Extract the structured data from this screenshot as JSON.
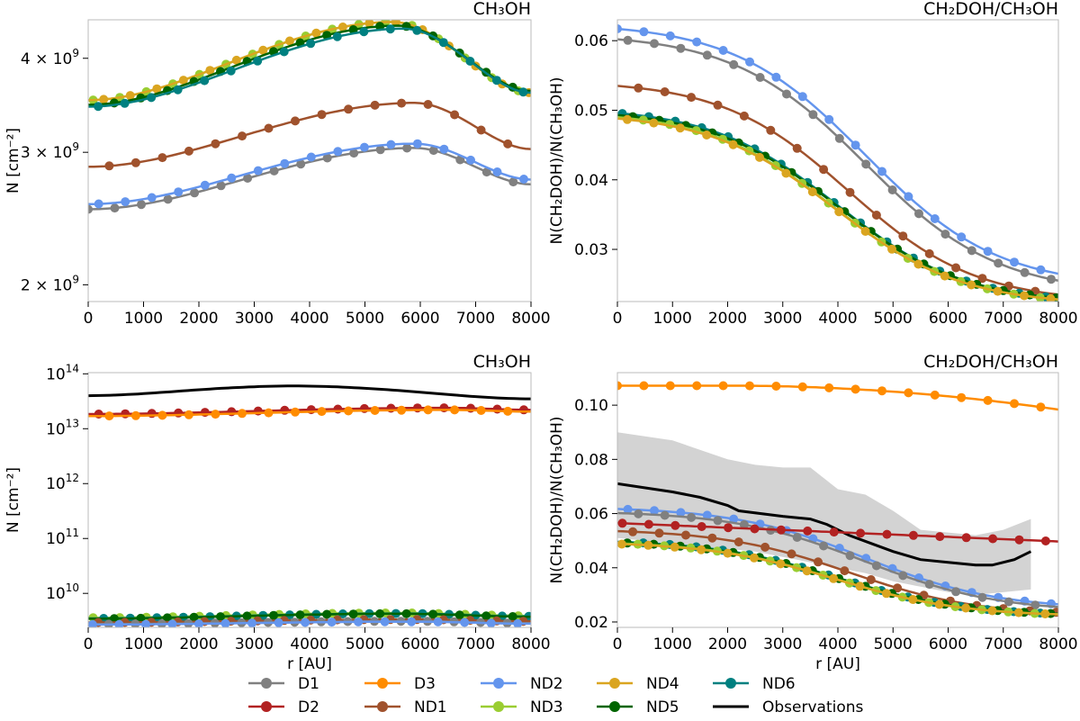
{
  "colors": {
    "D1": "#808080",
    "D2": "#b22222",
    "D3": "#ff8c00",
    "ND1": "#a0522d",
    "ND2": "#6495ed",
    "ND3": "#9acd32",
    "ND4": "#daa520",
    "ND5": "#006400",
    "ND6": "#008080",
    "Observations": "#000000",
    "band": "#d3d3d3"
  },
  "legend": {
    "items": [
      {
        "key": "D1",
        "label": "D1"
      },
      {
        "key": "D3",
        "label": "D3"
      },
      {
        "key": "ND2",
        "label": "ND2"
      },
      {
        "key": "ND4",
        "label": "ND4"
      },
      {
        "key": "ND6",
        "label": "ND6"
      },
      {
        "key": "D2",
        "label": "D2"
      },
      {
        "key": "ND1",
        "label": "ND1"
      },
      {
        "key": "ND3",
        "label": "ND3"
      },
      {
        "key": "ND5",
        "label": "ND5"
      },
      {
        "key": "Observations",
        "label": "Observations",
        "line": true
      }
    ]
  },
  "chart_data": [
    {
      "id": "tl",
      "type": "line",
      "title": "CH₃OH",
      "xlabel": "",
      "ylabel": "N [cm⁻²]",
      "yscale": "log",
      "xlim": [
        0,
        8000
      ],
      "ylim": [
        1900000000.0,
        4500000000.0
      ],
      "xticks": [
        0,
        1000,
        2000,
        3000,
        4000,
        5000,
        6000,
        7000,
        8000
      ],
      "xticklabels": [
        "0",
        "1000",
        "2000",
        "3000",
        "4000",
        "5000",
        "6000",
        "7000",
        "8000"
      ],
      "yticks": [
        {
          "v": 2000000000.0,
          "m": "2",
          "e": "9"
        },
        {
          "v": 3000000000.0,
          "m": "3",
          "e": "9"
        },
        {
          "v": 4000000000.0,
          "m": "4",
          "e": "9"
        }
      ],
      "series": [
        {
          "key": "D1",
          "model": "bump",
          "params": [
            2520000000.0,
            3040000000.0,
            2720000000.0,
            5900
          ]
        },
        {
          "key": "ND2",
          "model": "bump",
          "params": [
            2560000000.0,
            3080000000.0,
            2760000000.0,
            5900
          ]
        },
        {
          "key": "ND1",
          "model": "bump",
          "params": [
            2870000000.0,
            3490000000.0,
            3030000000.0,
            5900
          ]
        },
        {
          "key": "ND3",
          "model": "bump",
          "params": [
            3520000000.0,
            4470000000.0,
            3600000000.0,
            5500
          ]
        },
        {
          "key": "ND4",
          "model": "bump",
          "params": [
            3520000000.0,
            4470000000.0,
            3600000000.0,
            5500
          ]
        },
        {
          "key": "ND5",
          "model": "bump",
          "params": [
            3470000000.0,
            4420000000.0,
            3620000000.0,
            5600
          ]
        },
        {
          "key": "ND6",
          "model": "bump",
          "params": [
            3450000000.0,
            4380000000.0,
            3600000000.0,
            5700
          ]
        }
      ]
    },
    {
      "id": "tr",
      "type": "line",
      "title": "CH₂DOH/CH₃OH",
      "xlabel": "",
      "ylabel": "N(CH₂DOH)/N(CH₃OH)",
      "yscale": "linear",
      "xlim": [
        0,
        8000
      ],
      "ylim": [
        0.0225,
        0.063
      ],
      "xticks": [
        0,
        1000,
        2000,
        3000,
        4000,
        5000,
        6000,
        7000,
        8000
      ],
      "xticklabels": [
        "0",
        "1000",
        "2000",
        "3000",
        "4000",
        "5000",
        "6000",
        "7000",
        "8000"
      ],
      "yticks": [
        {
          "v": 0.03,
          "label": "0.03"
        },
        {
          "v": 0.04,
          "label": "0.04"
        },
        {
          "v": 0.05,
          "label": "0.05"
        },
        {
          "v": 0.06,
          "label": "0.06"
        }
      ],
      "series": [
        {
          "key": "ND2",
          "model": "sig",
          "params": [
            0.0617,
            0.0265,
            4500,
            1200
          ]
        },
        {
          "key": "D1",
          "model": "sig",
          "params": [
            0.0602,
            0.0255,
            4500,
            1200
          ]
        },
        {
          "key": "ND1",
          "model": "sig",
          "params": [
            0.0535,
            0.0235,
            4200,
            1150
          ]
        },
        {
          "key": "ND6",
          "model": "sig",
          "params": [
            0.0496,
            0.023,
            4000,
            1150
          ]
        },
        {
          "key": "ND5",
          "model": "sig",
          "params": [
            0.0493,
            0.023,
            4000,
            1150
          ]
        },
        {
          "key": "ND3",
          "model": "sig",
          "params": [
            0.049,
            0.0228,
            3950,
            1150
          ]
        },
        {
          "key": "ND4",
          "model": "sig",
          "params": [
            0.0488,
            0.0228,
            3950,
            1150
          ]
        }
      ]
    },
    {
      "id": "bl",
      "type": "line",
      "title": "CH₃OH",
      "xlabel": "r [AU]",
      "ylabel": "N [cm⁻²]",
      "yscale": "log",
      "xlim": [
        0,
        8000
      ],
      "ylim": [
        2400000000.0,
        105000000000000.0
      ],
      "xticks": [
        0,
        1000,
        2000,
        3000,
        4000,
        5000,
        6000,
        7000,
        8000
      ],
      "xticklabels": [
        "0",
        "1000",
        "2000",
        "3000",
        "4000",
        "5000",
        "6000",
        "7000",
        "8000"
      ],
      "yticks": [
        {
          "v": 10000000000.0,
          "m": "10",
          "e": "10",
          "pow": true
        },
        {
          "v": 100000000000.0,
          "m": "10",
          "e": "11",
          "pow": true
        },
        {
          "v": 1000000000000.0,
          "m": "10",
          "e": "12",
          "pow": true
        },
        {
          "v": 10000000000000.0,
          "m": "10",
          "e": "13",
          "pow": true
        },
        {
          "v": 100000000000000.0,
          "m": "10",
          "e": "14",
          "pow": true
        }
      ],
      "series": [
        {
          "key": "Observations",
          "line_only": true,
          "model": "bump",
          "params": [
            40000000000000.0,
            60000000000000.0,
            35000000000000.0,
            3700
          ]
        },
        {
          "key": "D2",
          "model": "bump",
          "params": [
            18500000000000.0,
            24000000000000.0,
            22000000000000.0,
            6500
          ]
        },
        {
          "key": "D3",
          "model": "bump",
          "params": [
            17000000000000.0,
            22000000000000.0,
            20500000000000.0,
            6500
          ]
        },
        {
          "key": "ND3",
          "model": "bump",
          "params": [
            3600000000.0,
            4400000000.0,
            3900000000.0,
            5600
          ]
        },
        {
          "key": "ND6",
          "model": "bump",
          "params": [
            3500000000.0,
            4300000000.0,
            3800000000.0,
            5700
          ]
        },
        {
          "key": "ND5",
          "model": "bump",
          "params": [
            3450000000.0,
            4250000000.0,
            3750000000.0,
            5600
          ]
        },
        {
          "key": "ND1",
          "model": "bump",
          "params": [
            2950000000.0,
            3350000000.0,
            3100000000.0,
            5900
          ]
        },
        {
          "key": "D1",
          "model": "bump",
          "params": [
            2750000000.0,
            3100000000.0,
            2850000000.0,
            5900
          ]
        },
        {
          "key": "ND2",
          "model": "bump",
          "params": [
            2700000000.0,
            3050000000.0,
            2800000000.0,
            5900
          ]
        }
      ]
    },
    {
      "id": "br",
      "type": "line",
      "title": "CH₂DOH/CH₃OH",
      "xlabel": "r [AU]",
      "ylabel": "N(CH₂DOH)/N(CH₃OH)",
      "yscale": "linear",
      "xlim": [
        0,
        8000
      ],
      "ylim": [
        0.018,
        0.112
      ],
      "xticks": [
        0,
        1000,
        2000,
        3000,
        4000,
        5000,
        6000,
        7000,
        8000
      ],
      "xticklabels": [
        "0",
        "1000",
        "2000",
        "3000",
        "4000",
        "5000",
        "6000",
        "7000",
        "8000"
      ],
      "yticks": [
        {
          "v": 0.02,
          "label": "0.02"
        },
        {
          "v": 0.04,
          "label": "0.04"
        },
        {
          "v": 0.06,
          "label": "0.06"
        },
        {
          "v": 0.08,
          "label": "0.08"
        },
        {
          "v": 0.1,
          "label": "0.10"
        }
      ],
      "band": {
        "x": [
          0,
          1000,
          2000,
          2500,
          3000,
          3500,
          4000,
          4500,
          5000,
          5500,
          6000,
          6500,
          7000,
          7500
        ],
        "upper": [
          0.09,
          0.087,
          0.08,
          0.078,
          0.077,
          0.077,
          0.069,
          0.067,
          0.061,
          0.054,
          0.053,
          0.052,
          0.054,
          0.058
        ],
        "lower": [
          0.051,
          0.049,
          0.047,
          0.046,
          0.044,
          0.042,
          0.04,
          0.038,
          0.035,
          0.033,
          0.031,
          0.03,
          0.031,
          0.032
        ]
      },
      "observations": {
        "key": "Observations",
        "x": [
          0,
          1000,
          1500,
          2000,
          2200,
          3000,
          3500,
          3800,
          4200,
          4600,
          5000,
          5500,
          6000,
          6500,
          6800,
          7200,
          7500
        ],
        "y": [
          0.071,
          0.068,
          0.066,
          0.063,
          0.061,
          0.059,
          0.058,
          0.056,
          0.052,
          0.049,
          0.046,
          0.043,
          0.042,
          0.041,
          0.041,
          0.043,
          0.046
        ]
      },
      "series": [
        {
          "key": "D3",
          "model": "poly",
          "params": [
            0.1072,
            0.0,
            2000,
            2.45e-10
          ]
        },
        {
          "key": "ND2",
          "model": "sig",
          "params": [
            0.0617,
            0.0265,
            4500,
            1200
          ]
        },
        {
          "key": "D1",
          "model": "sig",
          "params": [
            0.0602,
            0.0255,
            4500,
            1200
          ]
        },
        {
          "key": "D2",
          "model": "lin",
          "params": [
            0.0565,
            0.0497
          ]
        },
        {
          "key": "ND1",
          "model": "sig",
          "params": [
            0.0535,
            0.0235,
            4200,
            1150
          ]
        },
        {
          "key": "ND6",
          "model": "sig",
          "params": [
            0.0496,
            0.023,
            4000,
            1150
          ]
        },
        {
          "key": "ND5",
          "model": "sig",
          "params": [
            0.0493,
            0.023,
            4000,
            1150
          ]
        },
        {
          "key": "ND3",
          "model": "sig",
          "params": [
            0.049,
            0.0228,
            3950,
            1150
          ]
        },
        {
          "key": "ND4",
          "model": "sig",
          "params": [
            0.0488,
            0.0228,
            3950,
            1150
          ]
        }
      ]
    }
  ]
}
